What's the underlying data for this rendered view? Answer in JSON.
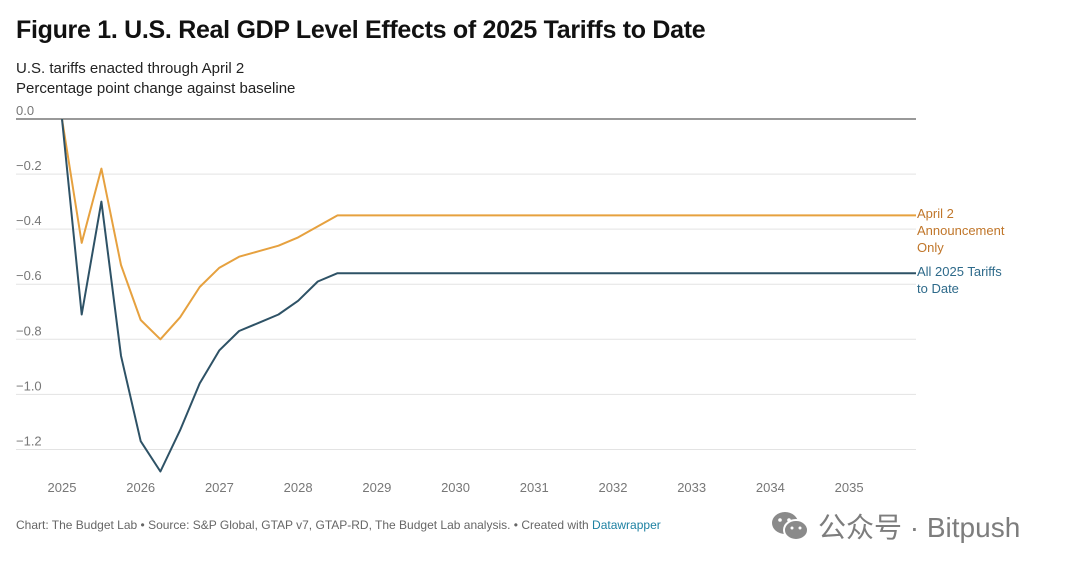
{
  "header": {
    "title": "Figure 1. U.S. Real GDP Level Effects of 2025 Tariffs to Date",
    "subtitle1": "U.S. tariffs enacted through April 2",
    "subtitle2": "Percentage point change against baseline"
  },
  "footer": {
    "text": "Chart: The Budget Lab • Source: S&P Global, GTAP v7, GTAP-RD, The Budget Lab analysis. • Created with ",
    "link": "Datawrapper"
  },
  "watermark": {
    "text": "公众号 · Bitpush",
    "icon": "wechat-icon"
  },
  "chart_data": {
    "type": "line",
    "ylim": [
      -1.3,
      0.0
    ],
    "xlim": [
      2025,
      2035.85
    ],
    "yticks": [
      0.0,
      -0.2,
      -0.4,
      -0.6,
      -0.8,
      -1.0,
      -1.2
    ],
    "ytick_labels": [
      "0.0",
      "−0.2",
      "−0.4",
      "−0.6",
      "−0.8",
      "−1.0",
      "−1.2"
    ],
    "xticks": [
      2025,
      2026,
      2027,
      2028,
      2029,
      2030,
      2031,
      2032,
      2033,
      2034,
      2035
    ],
    "xtick_labels": [
      "2025",
      "2026",
      "2027",
      "2028",
      "2029",
      "2030",
      "2031",
      "2032",
      "2033",
      "2034",
      "2035"
    ],
    "grid": true,
    "legend": "inline-right",
    "series": [
      {
        "name": "April 2 Announcement Only",
        "label_lines": [
          "April 2",
          "Announcement",
          "Only"
        ],
        "color": "#e6a13f",
        "label_color": "#c0762a",
        "x": [
          2025,
          2025.25,
          2025.5,
          2025.75,
          2026,
          2026.25,
          2026.5,
          2026.75,
          2027,
          2027.25,
          2027.5,
          2027.75,
          2028,
          2028.25,
          2028.5,
          2029,
          2030,
          2031,
          2032,
          2033,
          2034,
          2035,
          2035.85
        ],
        "y": [
          0.0,
          -0.45,
          -0.18,
          -0.53,
          -0.73,
          -0.8,
          -0.72,
          -0.61,
          -0.54,
          -0.5,
          -0.48,
          -0.46,
          -0.43,
          -0.39,
          -0.35,
          -0.35,
          -0.35,
          -0.35,
          -0.35,
          -0.35,
          -0.35,
          -0.35,
          -0.35
        ]
      },
      {
        "name": "All 2025 Tariffs to Date",
        "label_lines": [
          "All 2025 Tariffs",
          "to Date"
        ],
        "color": "#2e5266",
        "label_color": "#2e6a8a",
        "x": [
          2025,
          2025.25,
          2025.5,
          2025.75,
          2026,
          2026.25,
          2026.5,
          2026.75,
          2027,
          2027.25,
          2027.5,
          2027.75,
          2028,
          2028.25,
          2028.5,
          2029,
          2030,
          2031,
          2032,
          2033,
          2034,
          2035,
          2035.85
        ],
        "y": [
          0.0,
          -0.71,
          -0.3,
          -0.86,
          -1.17,
          -1.28,
          -1.13,
          -0.96,
          -0.84,
          -0.77,
          -0.74,
          -0.71,
          -0.66,
          -0.59,
          -0.56,
          -0.56,
          -0.56,
          -0.56,
          -0.56,
          -0.56,
          -0.56,
          -0.56,
          -0.56
        ]
      }
    ]
  }
}
